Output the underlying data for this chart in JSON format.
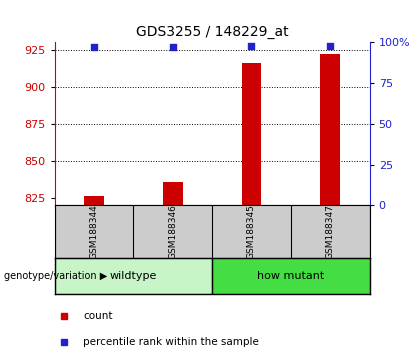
{
  "title": "GDS3255 / 148229_at",
  "samples": [
    "GSM188344",
    "GSM188346",
    "GSM188345",
    "GSM188347"
  ],
  "group_light_color": "#C8F5C8",
  "group_dark_color": "#44DD44",
  "count_values": [
    826,
    836,
    916,
    922
  ],
  "percentile_values": [
    97,
    97,
    98,
    98
  ],
  "ylim_left": [
    820,
    930
  ],
  "ylim_right": [
    0,
    100
  ],
  "yticks_left": [
    825,
    850,
    875,
    900,
    925
  ],
  "yticks_right": [
    0,
    25,
    50,
    75,
    100
  ],
  "ytick_right_labels": [
    "0",
    "25",
    "50",
    "75",
    "100%"
  ],
  "bar_color": "#CC0000",
  "dot_color": "#2222CC",
  "bar_width": 0.25,
  "sample_bg": "#CCCCCC",
  "genotype_label": "genotype/variation",
  "legend_count_label": "count",
  "legend_pct_label": "percentile rank within the sample"
}
